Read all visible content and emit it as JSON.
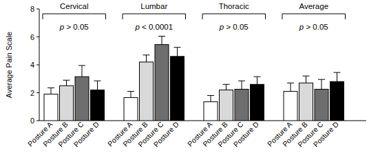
{
  "chart_data": {
    "type": "bar",
    "y_label": "Average Pain Scale",
    "categories": [
      "Cervical",
      "Lumbar",
      "Thoracic",
      "Average"
    ],
    "annotations": [
      "p > 0.05",
      "p < 0.0001",
      "p > 0.05",
      "p > 0.05"
    ],
    "series": [
      {
        "name": "Posture A",
        "color": "#ffffff",
        "values": [
          1.9,
          1.65,
          1.35,
          2.1
        ],
        "errors": [
          0.45,
          0.45,
          0.45,
          0.6
        ]
      },
      {
        "name": "Posture B",
        "color": "#d9d9d9",
        "values": [
          2.5,
          4.2,
          2.2,
          2.7
        ],
        "errors": [
          0.4,
          0.5,
          0.4,
          0.5
        ]
      },
      {
        "name": "Posture C",
        "color": "#6e6e6e",
        "values": [
          3.15,
          5.45,
          2.25,
          2.25
        ],
        "errors": [
          0.8,
          0.6,
          0.6,
          0.7
        ]
      },
      {
        "name": "Posture D",
        "color": "#000000",
        "values": [
          2.2,
          4.6,
          2.6,
          2.8
        ],
        "errors": [
          0.65,
          0.65,
          0.55,
          0.65
        ]
      }
    ],
    "ylim": [
      0,
      8
    ],
    "yticks": [
      0,
      2,
      4,
      6,
      8
    ],
    "grid": false
  }
}
